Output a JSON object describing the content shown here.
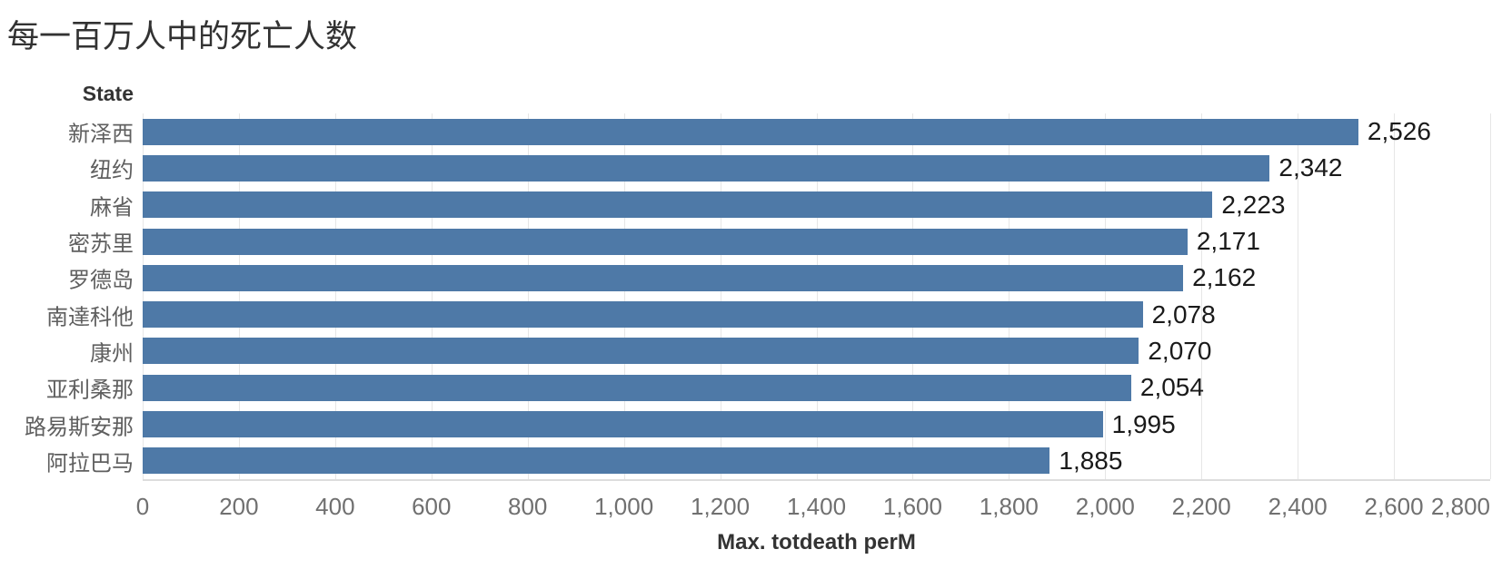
{
  "chart_data": {
    "type": "bar",
    "orientation": "horizontal",
    "title": "每一百万人中的死亡人数",
    "row_header": "State",
    "xlabel": "Max. totdeath perM",
    "xlim": [
      0,
      2800
    ],
    "grid": "vertical-gridlines-every-200",
    "legend": "none",
    "bar_color": "#4e79a7",
    "categories": [
      "新泽西",
      "纽约",
      "麻省",
      "密苏里",
      "罗德岛",
      "南達科他",
      "康州",
      "亚利桑那",
      "路易斯安那",
      "阿拉巴马"
    ],
    "values": [
      2526,
      2342,
      2223,
      2171,
      2162,
      2078,
      2070,
      2054,
      1995,
      1885
    ],
    "value_labels": [
      "2,526",
      "2,342",
      "2,223",
      "2,171",
      "2,162",
      "2,078",
      "2,070",
      "2,054",
      "1,995",
      "1,885"
    ],
    "xticks": {
      "values": [
        0,
        200,
        400,
        600,
        800,
        1000,
        1200,
        1400,
        1600,
        1800,
        2000,
        2200,
        2400,
        2600,
        2800
      ],
      "labels": [
        "0",
        "200",
        "400",
        "600",
        "800",
        "1,000",
        "1,200",
        "1,400",
        "1,600",
        "1,800",
        "2,000",
        "2,200",
        "2,400",
        "2,600",
        "2,800"
      ]
    }
  }
}
